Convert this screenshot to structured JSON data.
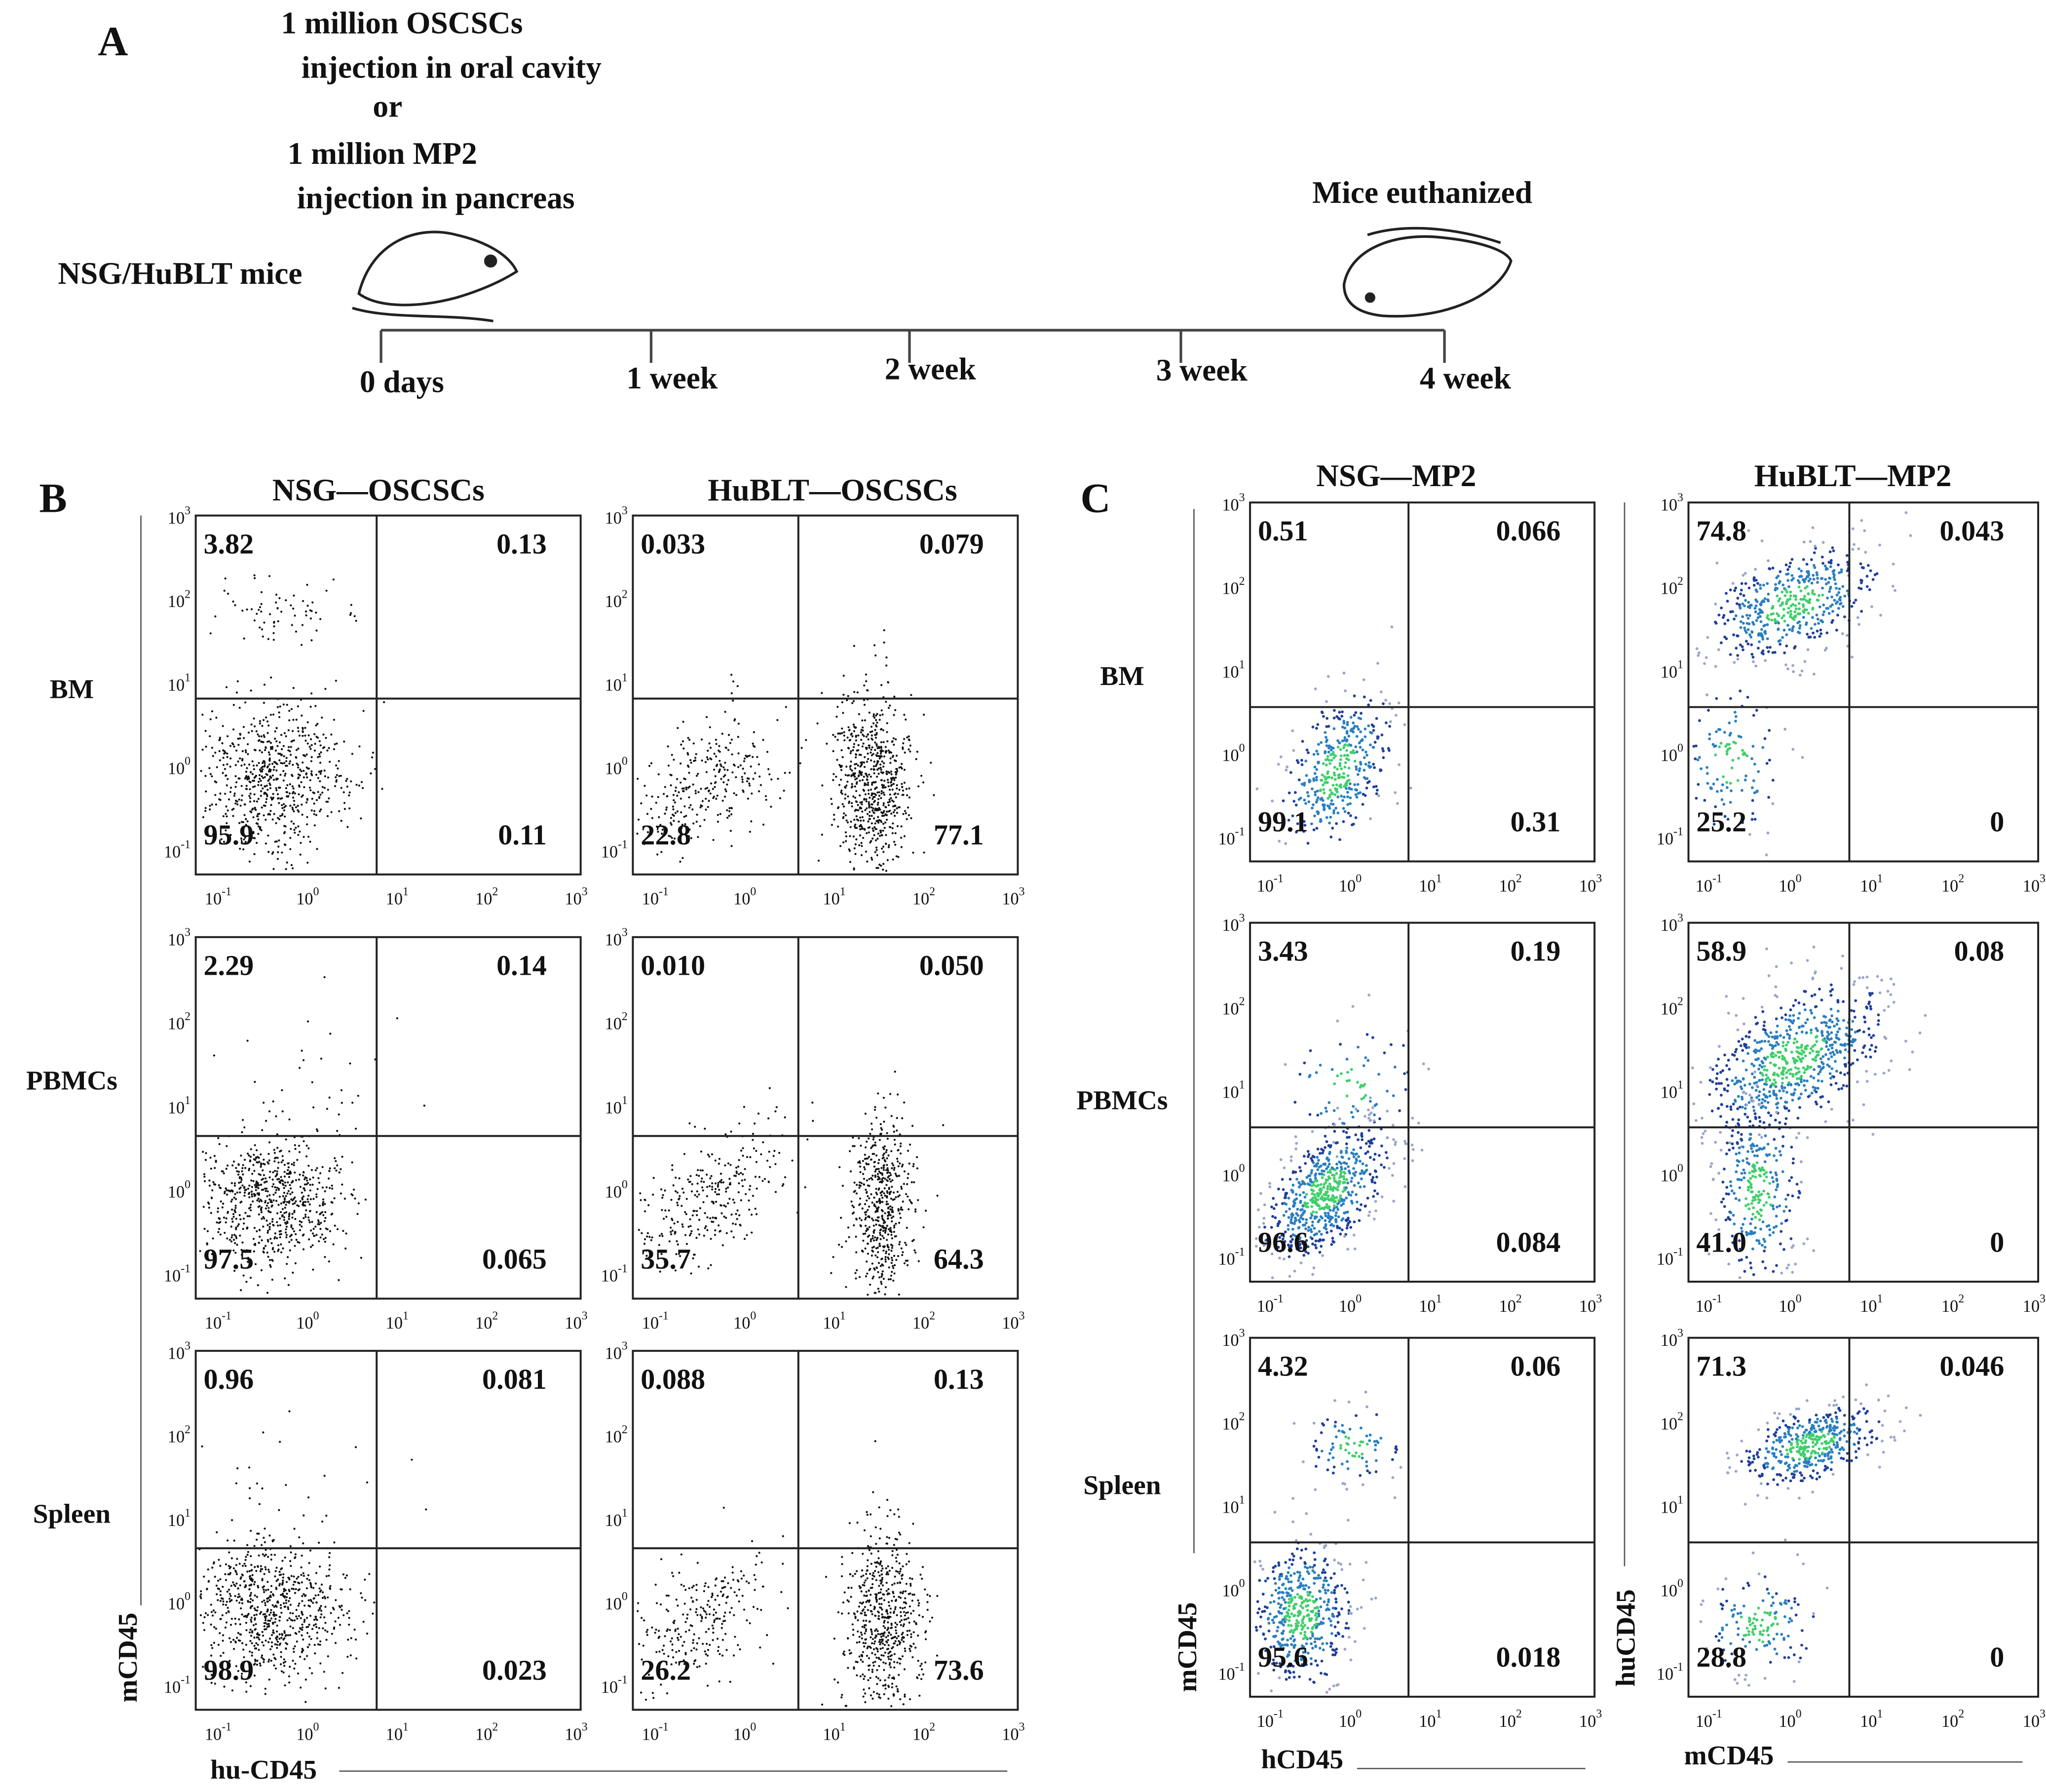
{
  "panel_a": {
    "label": "A",
    "injection_lines": [
      "1 million OSCSCs",
      "injection in oral cavity",
      "or",
      "1 million MP2",
      "injection in pancreas"
    ],
    "mouse_label": "NSG/HuBLT mice",
    "end_label": "Mice euthanized",
    "timeline": [
      "0 days",
      "1 week",
      "2 week",
      "3 week",
      "4 week"
    ]
  },
  "tick_base": "10",
  "tick_exponents": [
    "-1",
    "0",
    "1",
    "2",
    "3"
  ],
  "panel_b": {
    "label": "B",
    "columns": [
      "NSG—OSCSCs",
      "HuBLT—OSCSCs"
    ],
    "rows": [
      "BM",
      "PBMCs",
      "Spleen"
    ],
    "y_label": "mCD45",
    "x_label": "hu-CD45",
    "plots": [
      [
        [
          "3.82",
          "0.13",
          "95.9",
          "0.11"
        ],
        [
          "0.033",
          "0.079",
          "22.8",
          "77.1"
        ]
      ],
      [
        [
          "2.29",
          "0.14",
          "97.5",
          "0.065"
        ],
        [
          "0.010",
          "0.050",
          "35.7",
          "64.3"
        ]
      ],
      [
        [
          "0.96",
          "0.081",
          "98.9",
          "0.023"
        ],
        [
          "0.088",
          "0.13",
          "26.2",
          "73.6"
        ]
      ]
    ]
  },
  "panel_c": {
    "label": "C",
    "columns": [
      "NSG—MP2",
      "HuBLT—MP2"
    ],
    "rows": [
      "BM",
      "PBMCs",
      "Spleen"
    ],
    "y_labels": [
      "mCD45",
      "huCD45"
    ],
    "x_labels": [
      "hCD45",
      "mCD45"
    ],
    "plots": [
      [
        [
          "0.51",
          "0.066",
          "99.1",
          "0.31"
        ],
        [
          "74.8",
          "0.043",
          "25.2",
          "0"
        ]
      ],
      [
        [
          "3.43",
          "0.19",
          "96.6",
          "0.084"
        ],
        [
          "58.9",
          "0.08",
          "41.0",
          "0"
        ]
      ],
      [
        [
          "4.32",
          "0.06",
          "95.6",
          "0.018"
        ],
        [
          "71.3",
          "0.046",
          "28.8",
          "0"
        ]
      ]
    ]
  }
}
